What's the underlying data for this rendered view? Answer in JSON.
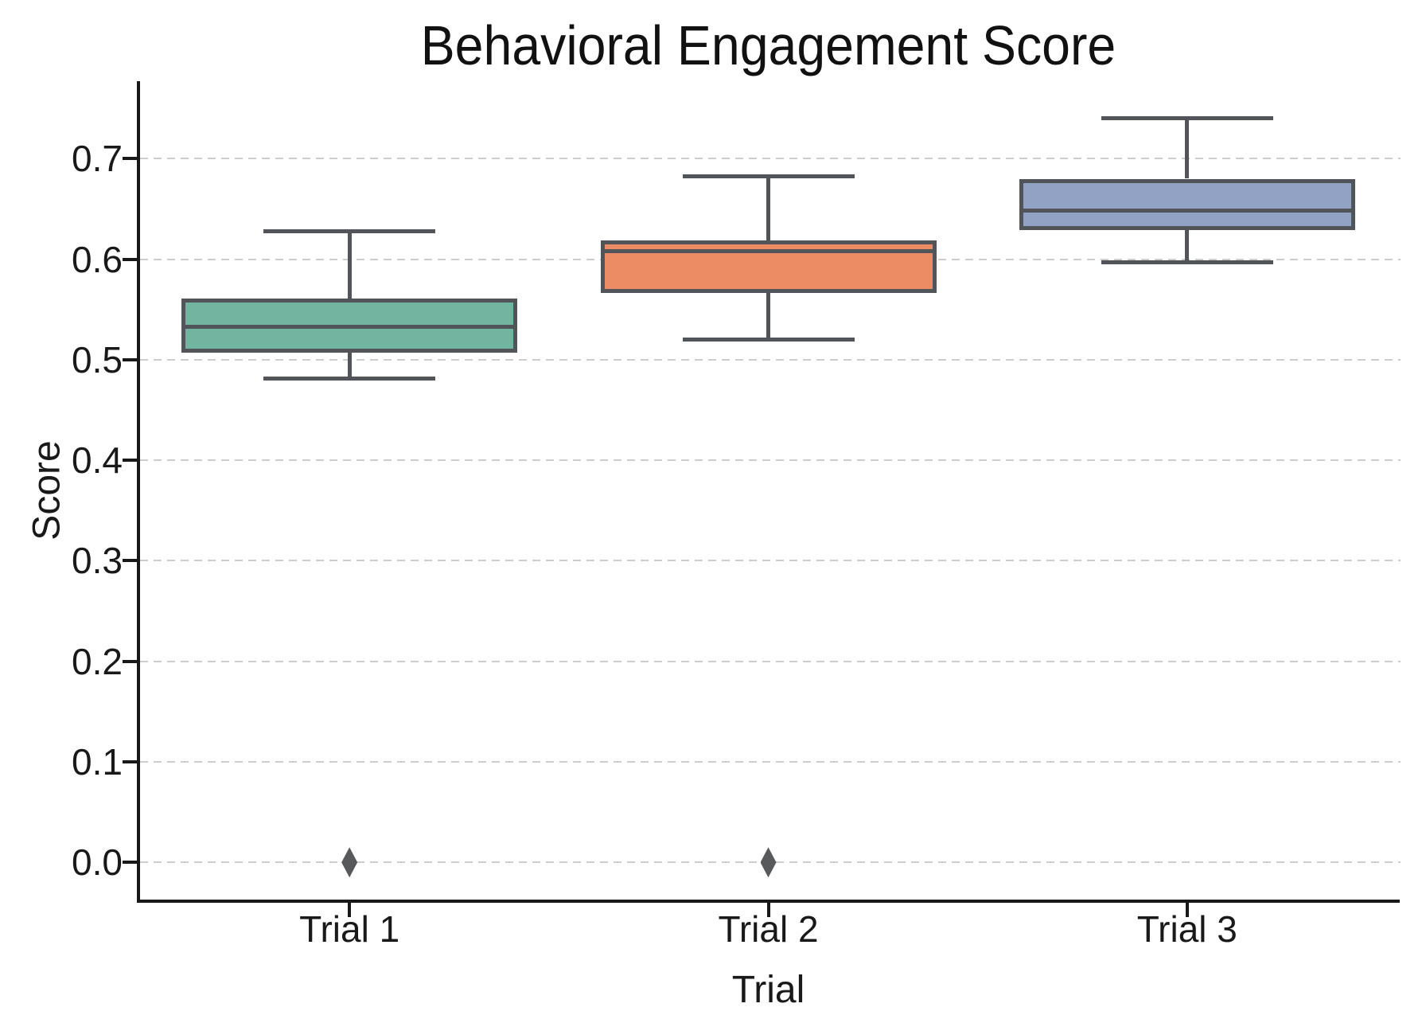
{
  "chart_data": {
    "type": "box",
    "title": "Behavioral Engagement Score",
    "xlabel": "Trial",
    "ylabel": "Score",
    "categories": [
      "Trial 1",
      "Trial 2",
      "Trial 3"
    ],
    "ytick_labels": [
      "0.0",
      "0.1",
      "0.2",
      "0.3",
      "0.4",
      "0.5",
      "0.6",
      "0.7"
    ],
    "ytick_values": [
      0.0,
      0.1,
      0.2,
      0.3,
      0.4,
      0.5,
      0.6,
      0.7
    ],
    "ylim": [
      -0.037,
      0.777
    ],
    "grid": "horizontal-dashed",
    "legend": "none",
    "series": [
      {
        "name": "Trial 1",
        "whisker_low": 0.481,
        "q1": 0.507,
        "median": 0.533,
        "q3": 0.561,
        "whisker_high": 0.628,
        "outliers": [
          0.0
        ],
        "fill": "#71b49f"
      },
      {
        "name": "Trial 2",
        "whisker_low": 0.52,
        "q1": 0.566,
        "median": 0.608,
        "q3": 0.619,
        "whisker_high": 0.682,
        "outliers": [
          0.0
        ],
        "fill": "#ec8c64"
      },
      {
        "name": "Trial 3",
        "whisker_low": 0.597,
        "q1": 0.629,
        "median": 0.648,
        "q3": 0.68,
        "whisker_high": 0.74,
        "outliers": [],
        "fill": "#92a2c4"
      }
    ],
    "colors": {
      "box_edge": "#515459",
      "whisker": "#515459",
      "outlier": "#58595b",
      "grid": "#cdcdcd",
      "spine": "#17181a",
      "text": "#191919",
      "background": "#ffffff"
    }
  }
}
